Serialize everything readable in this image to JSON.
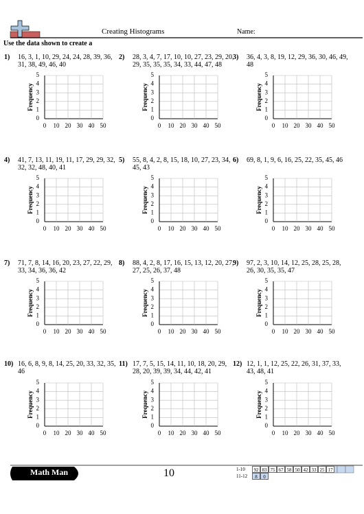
{
  "header": {
    "title": "Creating Histograms",
    "name_label": "Name:",
    "instructions": "Use the data shown to create a"
  },
  "axis": {
    "y_label": "Frequency",
    "yticks": [
      0,
      1,
      2,
      3,
      4,
      5
    ],
    "xticks": [
      0,
      10,
      20,
      30,
      40,
      50
    ]
  },
  "problems": [
    {
      "label": "1)",
      "data": "16, 3, 1, 10, 29, 24, 24, 28, 39, 36, 31, 38, 49, 46, 40"
    },
    {
      "label": "2)",
      "data": "28, 3, 4, 7, 17, 10, 10, 27, 23, 29, 20, 29, 35, 35, 35, 34, 33, 44, 47, 48"
    },
    {
      "label": "3)",
      "data": "36, 4, 3, 8, 19, 12, 29, 36, 30, 46, 49, 48"
    },
    {
      "label": "4)",
      "data": "41, 7, 13, 11, 19, 11, 17, 29, 29, 32, 32, 32, 48, 40, 41"
    },
    {
      "label": "5)",
      "data": "55, 8, 4, 2, 8, 15, 18, 10, 27, 23, 34, 45, 43"
    },
    {
      "label": "6)",
      "data": "69, 8, 1, 9, 6, 16, 25, 22, 35, 45, 46"
    },
    {
      "label": "7)",
      "data": "71, 7, 8, 14, 16, 20, 23, 27, 22, 29, 33, 34, 36, 36, 42"
    },
    {
      "label": "8)",
      "data": "88, 4, 2, 8, 17, 16, 15, 13, 12, 20, 27, 27, 25, 26, 37, 48"
    },
    {
      "label": "9)",
      "data": "97, 2, 3, 10, 14, 12, 25, 28, 25, 28, 26, 30, 35, 35, 47"
    },
    {
      "label": "10)",
      "data": "16, 6, 8, 9, 8, 14, 25, 20, 33, 32, 35, 46"
    },
    {
      "label": "11)",
      "data": "17, 7, 5, 15, 14, 11, 10, 18, 20, 29, 28, 20, 39, 39, 34, 44, 42, 41"
    },
    {
      "label": "12)",
      "data": "12, 1, 1, 12, 25, 22, 26, 31, 37, 33, 43, 48, 41"
    }
  ],
  "footer": {
    "brand": "Math Man",
    "page": "10",
    "answers": [
      {
        "range": "1-10",
        "values": [
          "92",
          "83",
          "75",
          "67",
          "58",
          "50",
          "42",
          "33",
          "25",
          "17"
        ]
      },
      {
        "range": "11-12",
        "values": [
          "8",
          "0"
        ]
      }
    ]
  }
}
